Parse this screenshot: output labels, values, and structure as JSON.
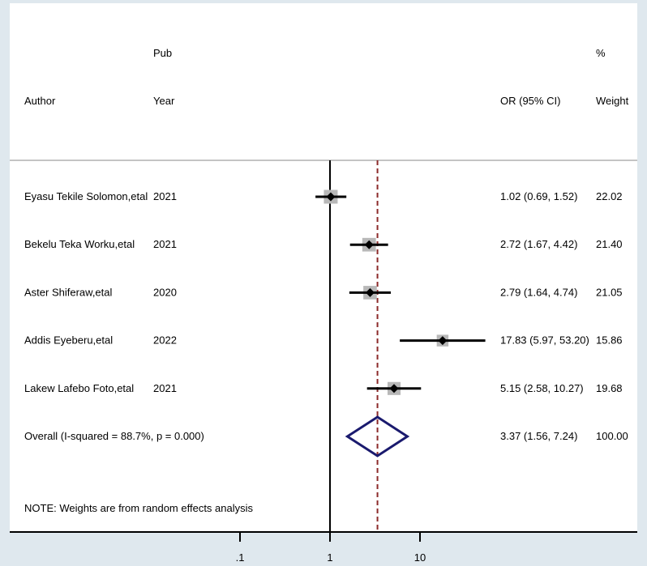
{
  "colors": {
    "outer_bg": "#dfe8ee",
    "plot_bg": "#ffffff",
    "overall_line": "#8c2a2a",
    "diamond": "#1a1a6e",
    "weight_box": "#b8b8b8",
    "separator": "#b0b0b0"
  },
  "headers": {
    "author": "Author",
    "pub_top": "Pub",
    "pub_bottom": "Year",
    "or_ci": "OR (95% CI)",
    "weight_top": "%",
    "weight_bottom": "Weight"
  },
  "note": "NOTE: Weights are from random effects analysis",
  "chart_data": {
    "type": "forest",
    "x_scale": "log",
    "null_value": 1,
    "xlim": [
      0.1,
      10
    ],
    "x_ticks": [
      {
        "value": 0.1,
        "label": ".1"
      },
      {
        "value": 1,
        "label": "1"
      },
      {
        "value": 10,
        "label": "10"
      }
    ],
    "studies": [
      {
        "author": "Eyasu Tekile Solomon,etal",
        "year": "2021",
        "or": 1.02,
        "lower": 0.69,
        "upper": 1.52,
        "or_ci_label": "1.02 (0.69, 1.52)",
        "weight": 22.02,
        "weight_label": "22.02"
      },
      {
        "author": "Bekelu Teka Worku,etal",
        "year": "2021",
        "or": 2.72,
        "lower": 1.67,
        "upper": 4.42,
        "or_ci_label": "2.72 (1.67, 4.42)",
        "weight": 21.4,
        "weight_label": "21.40"
      },
      {
        "author": "Aster Shiferaw,etal",
        "year": "2020",
        "or": 2.79,
        "lower": 1.64,
        "upper": 4.74,
        "or_ci_label": "2.79 (1.64, 4.74)",
        "weight": 21.05,
        "weight_label": "21.05"
      },
      {
        "author": "Addis Eyeberu,etal",
        "year": "2022",
        "or": 17.83,
        "lower": 5.97,
        "upper": 53.2,
        "or_ci_label": "17.83 (5.97, 53.20)",
        "weight": 15.86,
        "weight_label": "15.86"
      },
      {
        "author": "Lakew Lafebo Foto,etal",
        "year": "2021",
        "or": 5.15,
        "lower": 2.58,
        "upper": 10.27,
        "or_ci_label": "5.15 (2.58, 10.27)",
        "weight": 19.68,
        "weight_label": "19.68"
      }
    ],
    "overall": {
      "label": "Overall  (I-squared = 88.7%, p = 0.000)",
      "or": 3.37,
      "lower": 1.56,
      "upper": 7.24,
      "or_ci_label": "3.37 (1.56, 7.24)",
      "weight_label": "100.00"
    }
  }
}
